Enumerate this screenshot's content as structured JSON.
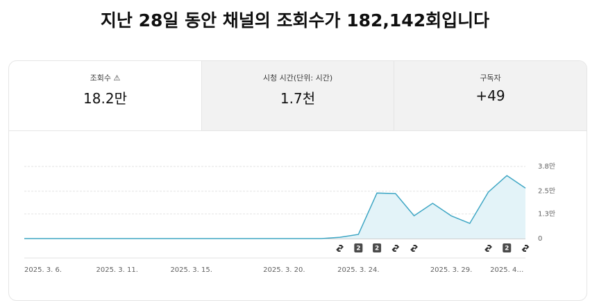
{
  "header": {
    "title": "지난 28일 동안 채널의 조회수가 182,142회입니다"
  },
  "tabs": [
    {
      "label": "조회수",
      "value": "18.2만"
    },
    {
      "label": "시청 시간(단위: 시간)",
      "value": "1.7천"
    },
    {
      "label": "구독자",
      "value": "+49"
    }
  ],
  "chart_data": {
    "type": "area",
    "categories": [
      "2025. 3. 6.",
      null,
      null,
      null,
      null,
      "2025. 3. 11.",
      null,
      null,
      null,
      "2025. 3. 15.",
      null,
      null,
      null,
      null,
      "2025. 3. 20.",
      null,
      null,
      null,
      "2025. 3. 24.",
      null,
      null,
      null,
      null,
      "2025. 3. 29.",
      null,
      null,
      "2025. 4…",
      null
    ],
    "values": [
      0,
      0,
      0,
      0,
      0,
      0,
      0,
      0,
      0,
      0,
      0,
      0,
      0,
      0,
      0,
      0,
      0,
      0.07,
      0.22,
      2.4,
      2.37,
      1.2,
      1.86,
      1.2,
      0.8,
      2.45,
      3.32,
      2.66
    ],
    "color": "#3ea6c4",
    "ylim": [
      0,
      3.8
    ],
    "yticks": [
      0,
      {
        "value": 1.3,
        "label": "1.3만"
      },
      {
        "value": 2.5,
        "label": "2.5만"
      },
      {
        "value": 3.8,
        "label": "3.8만"
      }
    ],
    "grid": true,
    "event_labels": [
      "2",
      "2",
      "2"
    ]
  }
}
